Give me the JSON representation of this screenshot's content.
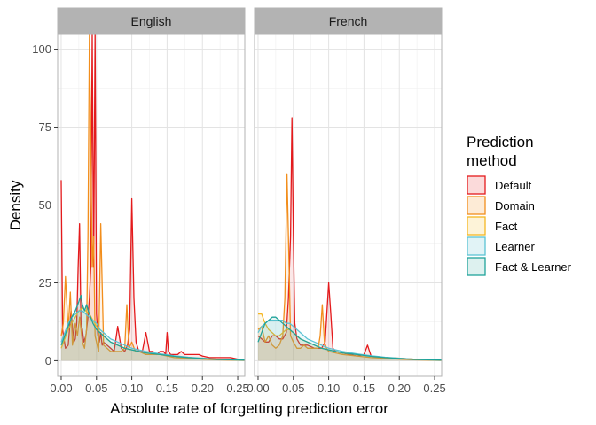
{
  "chart_data": {
    "type": "area",
    "xlabel": "Absolute rate of forgetting prediction error",
    "ylabel": "Density",
    "xlim": [
      -0.005,
      0.26
    ],
    "ylim": [
      -5,
      105
    ],
    "x_ticks": [
      0.0,
      0.05,
      0.1,
      0.15,
      0.2,
      0.25
    ],
    "x_tick_labels": [
      "0.00",
      "0.05",
      "0.10",
      "0.15",
      "0.20",
      "0.25"
    ],
    "y_ticks": [
      0,
      25,
      50,
      75,
      100
    ],
    "y_tick_labels": [
      "0",
      "25",
      "50",
      "75",
      "100"
    ],
    "grid": true,
    "legend": {
      "title_lines": [
        "Prediction",
        "method"
      ],
      "position": "right",
      "entries": [
        {
          "label": "Default",
          "color": "#E41A1C",
          "fill": "#FBDADA"
        },
        {
          "label": "Domain",
          "color": "#F28E1C",
          "fill": "#FDEBD6"
        },
        {
          "label": "Fact",
          "color": "#F5B723",
          "fill": "#FDF3D8"
        },
        {
          "label": "Learner",
          "color": "#5CC3D4",
          "fill": "#E1F3F6"
        },
        {
          "label": "Fact & Learner",
          "color": "#1FA39B",
          "fill": "#DDF1EF"
        }
      ]
    },
    "panels": [
      {
        "name": "English",
        "series": [
          {
            "name": "Default",
            "x": [
              0.0,
              0.002,
              0.006,
              0.01,
              0.014,
              0.018,
              0.02,
              0.022,
              0.024,
              0.026,
              0.028,
              0.03,
              0.032,
              0.035,
              0.038,
              0.04,
              0.042,
              0.044,
              0.046,
              0.048,
              0.05,
              0.052,
              0.054,
              0.056,
              0.058,
              0.06,
              0.065,
              0.07,
              0.075,
              0.08,
              0.085,
              0.09,
              0.094,
              0.097,
              0.1,
              0.103,
              0.106,
              0.11,
              0.115,
              0.12,
              0.125,
              0.13,
              0.135,
              0.14,
              0.145,
              0.148,
              0.15,
              0.152,
              0.155,
              0.16,
              0.165,
              0.17,
              0.175,
              0.18,
              0.185,
              0.19,
              0.195,
              0.2,
              0.21,
              0.22,
              0.23,
              0.24,
              0.25,
              0.26
            ],
            "y": [
              58,
              10,
              4,
              5,
              16,
              6,
              7,
              12,
              30,
              44,
              12,
              10,
              6,
              8,
              14,
              20,
              30,
              105,
              30,
              105,
              15,
              8,
              6,
              9,
              5,
              6,
              5,
              4,
              3,
              11,
              4,
              3,
              5,
              10,
              52,
              20,
              6,
              3,
              3,
              9,
              3,
              3,
              2,
              3,
              3,
              2,
              9,
              3,
              2,
              2,
              2,
              3,
              2,
              2,
              2,
              2,
              2,
              1.5,
              1,
              1,
              1,
              1,
              0.5,
              0.3
            ]
          },
          {
            "name": "Domain",
            "x": [
              0.0,
              0.003,
              0.006,
              0.01,
              0.013,
              0.016,
              0.02,
              0.023,
              0.026,
              0.03,
              0.033,
              0.036,
              0.038,
              0.04,
              0.042,
              0.044,
              0.046,
              0.048,
              0.05,
              0.053,
              0.056,
              0.06,
              0.065,
              0.07,
              0.075,
              0.08,
              0.085,
              0.09,
              0.093,
              0.096,
              0.1,
              0.105,
              0.11,
              0.12,
              0.13,
              0.14,
              0.15,
              0.16,
              0.18,
              0.2,
              0.22,
              0.24,
              0.26
            ],
            "y": [
              8,
              12,
              27,
              10,
              22,
              5,
              12,
              8,
              14,
              6,
              4,
              10,
              40,
              105,
              70,
              30,
              40,
              8,
              6,
              3,
              44,
              5,
              4,
              3,
              3,
              3,
              3,
              4,
              18,
              4,
              6,
              3,
              3,
              2,
              2,
              2,
              1.5,
              1,
              0.8,
              0.5,
              0.3,
              0.2,
              0.1
            ]
          },
          {
            "name": "Fact",
            "x": [
              0.0,
              0.005,
              0.01,
              0.015,
              0.02,
              0.025,
              0.03,
              0.035,
              0.04,
              0.045,
              0.05,
              0.055,
              0.06,
              0.07,
              0.08,
              0.09,
              0.1,
              0.11,
              0.12,
              0.14,
              0.16,
              0.18,
              0.2,
              0.22,
              0.24,
              0.26
            ],
            "y": [
              4,
              7,
              10,
              12,
              14,
              16,
              17,
              16,
              15,
              13,
              11,
              9,
              8,
              6,
              5,
              4,
              3.5,
              3,
              2.5,
              2,
              1.5,
              1,
              0.8,
              0.5,
              0.3,
              0.2
            ]
          },
          {
            "name": "Learner",
            "x": [
              0.0,
              0.005,
              0.01,
              0.015,
              0.02,
              0.025,
              0.03,
              0.035,
              0.04,
              0.045,
              0.05,
              0.055,
              0.06,
              0.07,
              0.08,
              0.09,
              0.1,
              0.11,
              0.12,
              0.14,
              0.16,
              0.18,
              0.2,
              0.22,
              0.24,
              0.26
            ],
            "y": [
              6,
              9,
              12,
              14,
              15,
              16,
              16,
              15,
              14,
              13,
              12,
              10,
              9,
              7,
              6,
              5,
              4,
              3.5,
              3,
              2.2,
              1.6,
              1.1,
              0.8,
              0.5,
              0.3,
              0.2
            ]
          },
          {
            "name": "Fact & Learner",
            "x": [
              0.0,
              0.005,
              0.01,
              0.015,
              0.02,
              0.025,
              0.028,
              0.03,
              0.033,
              0.036,
              0.04,
              0.045,
              0.05,
              0.055,
              0.06,
              0.07,
              0.08,
              0.09,
              0.1,
              0.11,
              0.12,
              0.14,
              0.16,
              0.18,
              0.2,
              0.22,
              0.24,
              0.26
            ],
            "y": [
              5,
              8,
              11,
              14,
              16,
              19,
              21,
              18,
              16,
              18,
              15,
              12,
              10,
              9,
              8,
              6,
              5,
              4,
              3.5,
              3,
              2.5,
              2,
              1.4,
              1,
              0.7,
              0.4,
              0.3,
              0.2
            ]
          }
        ]
      },
      {
        "name": "French",
        "series": [
          {
            "name": "Default",
            "x": [
              0.0,
              0.005,
              0.01,
              0.015,
              0.02,
              0.025,
              0.03,
              0.035,
              0.04,
              0.043,
              0.046,
              0.048,
              0.05,
              0.052,
              0.055,
              0.06,
              0.07,
              0.08,
              0.09,
              0.095,
              0.1,
              0.103,
              0.106,
              0.11,
              0.12,
              0.13,
              0.14,
              0.15,
              0.155,
              0.16,
              0.17,
              0.18,
              0.2,
              0.22,
              0.24,
              0.26
            ],
            "y": [
              8,
              7,
              6,
              6,
              8,
              8,
              7,
              7,
              9,
              20,
              40,
              78,
              40,
              12,
              7,
              5,
              5,
              4,
              4,
              6,
              25,
              15,
              4,
              3,
              2.5,
              2,
              1.5,
              2,
              5,
              1.5,
              1.2,
              1,
              0.8,
              0.5,
              0.3,
              0.2
            ]
          },
          {
            "name": "Domain",
            "x": [
              0.0,
              0.005,
              0.01,
              0.015,
              0.02,
              0.025,
              0.03,
              0.035,
              0.038,
              0.041,
              0.044,
              0.046,
              0.05,
              0.055,
              0.06,
              0.065,
              0.07,
              0.075,
              0.08,
              0.085,
              0.088,
              0.091,
              0.094,
              0.097,
              0.1,
              0.11,
              0.12,
              0.14,
              0.16,
              0.18,
              0.2,
              0.22,
              0.24,
              0.26
            ],
            "y": [
              10,
              11,
              6,
              8,
              5,
              4,
              5,
              8,
              20,
              60,
              30,
              8,
              6,
              4,
              4,
              5,
              4,
              4,
              4,
              4,
              8,
              18,
              6,
              4,
              3,
              2.5,
              2,
              1.5,
              1,
              0.8,
              0.5,
              0.3,
              0.2,
              0.1
            ]
          },
          {
            "name": "Fact",
            "x": [
              0.0,
              0.005,
              0.01,
              0.015,
              0.02,
              0.025,
              0.03,
              0.035,
              0.04,
              0.045,
              0.05,
              0.055,
              0.06,
              0.07,
              0.08,
              0.09,
              0.1,
              0.11,
              0.12,
              0.14,
              0.16,
              0.18,
              0.2,
              0.22,
              0.24,
              0.26
            ],
            "y": [
              15,
              15,
              12,
              10,
              9,
              8,
              8,
              9,
              10,
              10,
              9,
              8,
              7,
              6,
              5,
              4,
              3.5,
              3,
              2.5,
              2,
              1.5,
              1,
              0.8,
              0.5,
              0.3,
              0.2
            ]
          },
          {
            "name": "Learner",
            "x": [
              0.0,
              0.005,
              0.01,
              0.015,
              0.02,
              0.025,
              0.03,
              0.035,
              0.04,
              0.045,
              0.05,
              0.055,
              0.06,
              0.07,
              0.08,
              0.09,
              0.1,
              0.11,
              0.12,
              0.14,
              0.16,
              0.18,
              0.2,
              0.22,
              0.24,
              0.26
            ],
            "y": [
              9,
              11,
              12,
              13,
              13,
              13,
              13,
              13,
              12,
              12,
              11,
              10,
              9,
              7,
              6,
              5,
              4,
              3.5,
              3,
              2.2,
              1.6,
              1.1,
              0.8,
              0.5,
              0.3,
              0.2
            ]
          },
          {
            "name": "Fact & Learner",
            "x": [
              0.0,
              0.005,
              0.01,
              0.015,
              0.02,
              0.025,
              0.03,
              0.035,
              0.04,
              0.045,
              0.05,
              0.055,
              0.06,
              0.07,
              0.08,
              0.09,
              0.1,
              0.11,
              0.12,
              0.14,
              0.16,
              0.18,
              0.2,
              0.22,
              0.24,
              0.26
            ],
            "y": [
              6,
              9,
              12,
              13,
              14,
              14,
              13,
              12,
              11,
              10,
              9,
              8,
              7,
              6,
              5,
              4,
              3.5,
              3,
              2.5,
              2,
              1.4,
              1,
              0.7,
              0.4,
              0.3,
              0.2
            ]
          }
        ]
      }
    ]
  }
}
